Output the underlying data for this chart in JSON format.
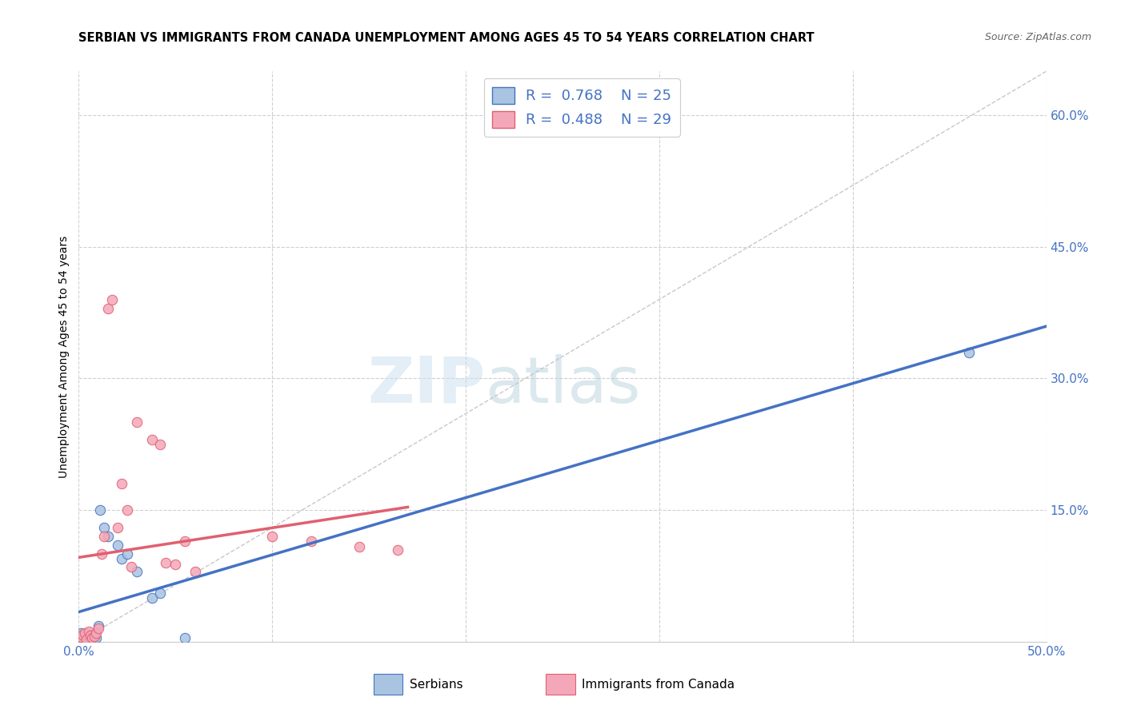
{
  "title": "SERBIAN VS IMMIGRANTS FROM CANADA UNEMPLOYMENT AMONG AGES 45 TO 54 YEARS CORRELATION CHART",
  "source": "Source: ZipAtlas.com",
  "ylabel": "Unemployment Among Ages 45 to 54 years",
  "xlim": [
    0.0,
    0.5
  ],
  "ylim": [
    0.0,
    0.65
  ],
  "xtick_positions": [
    0.0,
    0.1,
    0.2,
    0.3,
    0.4,
    0.5
  ],
  "xtick_labels": [
    "0.0%",
    "",
    "",
    "",
    "",
    "50.0%"
  ],
  "ytick_positions": [
    0.0,
    0.15,
    0.3,
    0.45,
    0.6
  ],
  "ytick_labels": [
    "",
    "15.0%",
    "30.0%",
    "45.0%",
    "60.0%"
  ],
  "serbian_color": "#a8c4e0",
  "immigrants_color": "#f4a7b9",
  "serbian_line_color": "#4472c4",
  "immigrants_line_color": "#e06070",
  "diagonal_color": "#c8c8c8",
  "grid_color": "#d0d0d0",
  "background_color": "#ffffff",
  "title_fontsize": 10.5,
  "axis_label_fontsize": 10,
  "tick_fontsize": 11,
  "legend_fontsize": 13,
  "source_fontsize": 9,
  "serbian_x": [
    0.001,
    0.002,
    0.003,
    0.003,
    0.004,
    0.005,
    0.006,
    0.007,
    0.007,
    0.008,
    0.009,
    0.01,
    0.011,
    0.013,
    0.015,
    0.02,
    0.022,
    0.025,
    0.03,
    0.038,
    0.042,
    0.055,
    0.46
  ],
  "serbian_y": [
    0.01,
    0.003,
    0.006,
    0.002,
    0.004,
    0.005,
    0.008,
    0.003,
    0.005,
    0.007,
    0.004,
    0.018,
    0.15,
    0.13,
    0.12,
    0.11,
    0.095,
    0.1,
    0.08,
    0.05,
    0.055,
    0.004,
    0.33
  ],
  "immigrants_x": [
    0.001,
    0.002,
    0.003,
    0.004,
    0.005,
    0.006,
    0.007,
    0.008,
    0.009,
    0.01,
    0.012,
    0.013,
    0.015,
    0.017,
    0.02,
    0.022,
    0.025,
    0.027,
    0.03,
    0.038,
    0.042,
    0.045,
    0.05,
    0.055,
    0.06,
    0.1,
    0.12,
    0.145,
    0.165
  ],
  "immigrants_y": [
    0.005,
    0.008,
    0.01,
    0.003,
    0.012,
    0.007,
    0.004,
    0.006,
    0.01,
    0.015,
    0.1,
    0.12,
    0.38,
    0.39,
    0.13,
    0.18,
    0.15,
    0.085,
    0.25,
    0.23,
    0.225,
    0.09,
    0.088,
    0.115,
    0.08,
    0.12,
    0.115,
    0.108,
    0.105
  ],
  "marker_size": 80
}
